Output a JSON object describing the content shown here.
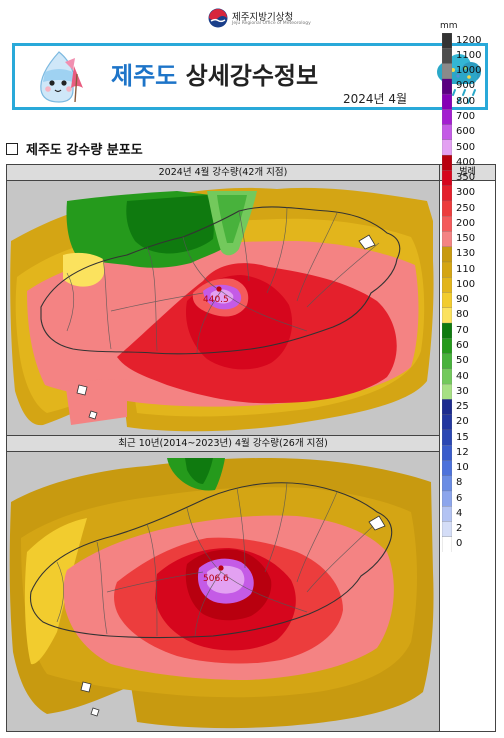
{
  "header": {
    "org_name": "제주지방기상청",
    "org_subtitle": "Jeju Regional Office of Meteorology"
  },
  "banner": {
    "title_region": "제주도",
    "title_rest": "상세강수정보",
    "date": "2024년 4월"
  },
  "section": {
    "title": "제주도 강수량 분포도"
  },
  "maps": [
    {
      "title": "2024년 4월 강수량(42개 지점)",
      "max_label": "440.5",
      "max_value": 440.5
    },
    {
      "title": "최근 10년(2014~2023년) 4월 강수량(26개 지점)",
      "max_label": "506.6",
      "max_value": 506.6
    }
  ],
  "legend": {
    "title": "범례",
    "unit": "mm",
    "levels": [
      "1200",
      "1100",
      "1000",
      "900",
      "800",
      "700",
      "600",
      "500",
      "400",
      "350",
      "300",
      "250",
      "200",
      "150",
      "130",
      "110",
      "100",
      "90",
      "80",
      "70",
      "60",
      "50",
      "40",
      "30",
      "25",
      "20",
      "15",
      "12",
      "10",
      "8",
      "6",
      "4",
      "2",
      "0"
    ],
    "colors": [
      "#333333",
      "#4d4d4d",
      "#8a8a8a",
      "#5a0080",
      "#8500b5",
      "#a31fd0",
      "#c45be6",
      "#e3a1f2",
      "#b8000f",
      "#d6061d",
      "#e4202c",
      "#ec3d3d",
      "#f45b5b",
      "#f48383",
      "#c89a10",
      "#d4a514",
      "#e2b51c",
      "#f2cc2e",
      "#fbe25e",
      "#0f7a0f",
      "#259a1c",
      "#48b23c",
      "#73c95c",
      "#a7e084",
      "#1d2c8f",
      "#23379f",
      "#2b47b3",
      "#3a5ccb",
      "#4d72db",
      "#6a8ce4",
      "#8ca5ec",
      "#b3c3f3",
      "#d4ddf7",
      "#ffffff"
    ]
  },
  "colors": {
    "accent": "#29a9d9",
    "title_blue": "#1d74c8"
  }
}
